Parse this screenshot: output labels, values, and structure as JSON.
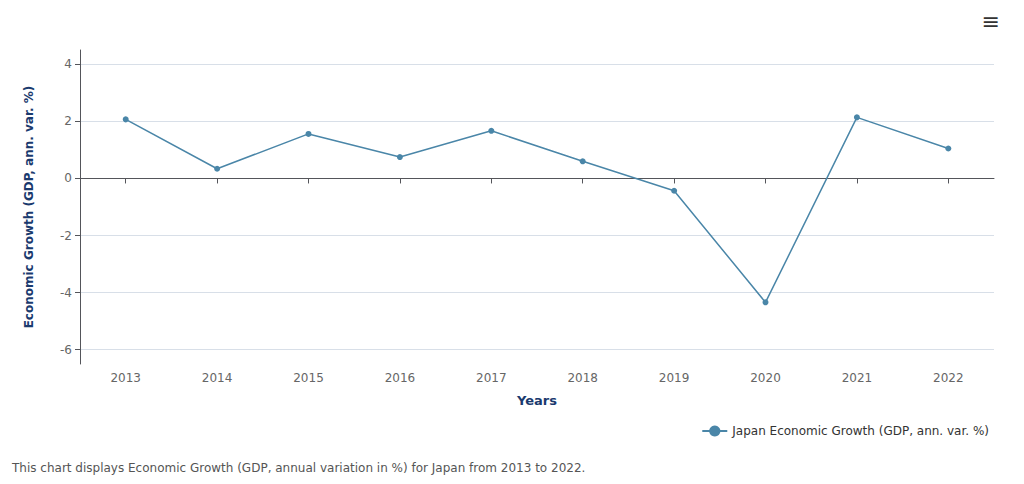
{
  "chart_data": {
    "type": "line",
    "x": [
      2013,
      2014,
      2015,
      2016,
      2017,
      2018,
      2019,
      2020,
      2021,
      2022
    ],
    "series": [
      {
        "name": "Japan Economic Growth (GDP, ann. var. %)",
        "color": "#4a86a8",
        "marker": "circle",
        "values": [
          2.07,
          0.34,
          1.56,
          0.75,
          1.67,
          0.6,
          -0.43,
          -4.34,
          2.14,
          1.05
        ]
      }
    ],
    "xlabel": "Years",
    "ylabel": "Economic Growth (GDP, ann. var. %)",
    "xlim": [
      2012.5,
      2022.5
    ],
    "xticks": [
      2013,
      2014,
      2015,
      2016,
      2017,
      2018,
      2019,
      2020,
      2021,
      2022
    ],
    "ylim": [
      -6.5,
      4.5
    ],
    "yticks": [
      -6,
      -4,
      -2,
      0,
      2,
      4
    ],
    "grid": "y",
    "legend": "lower right",
    "annotations": [
      "This chart displays Economic Growth (GDP, annual variation in %) for Japan from 2013 to 2022.",
      "≡"
    ]
  }
}
